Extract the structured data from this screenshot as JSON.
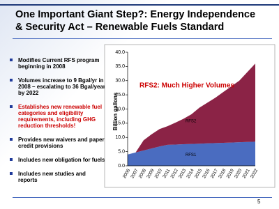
{
  "title": "One Important Giant Step?: Energy Independence & Security Act – Renewable Fuels Standard",
  "bullets": [
    {
      "text": "Modifies Current RFS program beginning in 2008",
      "color": "#000000"
    },
    {
      "text": "Volumes increase to 9 Bgal/yr in 2008 – escalating to 36 Bgal/year by 2022",
      "color": "#000000"
    },
    {
      "text": "Establishes new renewable fuel categories and eligibility requirements, including GHG reduction thresholds!",
      "color": "#cc0000"
    },
    {
      "text": "Provides new waivers and paper credit provisions",
      "color": "#000000"
    },
    {
      "text": "Includes new obligation for fuels",
      "color": "#000000"
    },
    {
      "text": "Includes new studies and reports",
      "color": "#000000"
    }
  ],
  "page_number": "5",
  "chart_data": {
    "type": "stacked_area",
    "ylabel": "Billion gallons",
    "annotation": "RFS2:  Much Higher Volumes",
    "categories": [
      "2006",
      "2007",
      "2008",
      "2009",
      "2010",
      "2011",
      "2012",
      "2013",
      "2014",
      "2015",
      "2016",
      "2017",
      "2018",
      "2019",
      "2020",
      "2021",
      "2022"
    ],
    "series": [
      {
        "name": "RFS1",
        "color": "#4a6cc0",
        "values": [
          4.0,
          4.7,
          5.4,
          6.1,
          6.8,
          7.4,
          7.5,
          7.6,
          7.7,
          7.8,
          7.9,
          8.0,
          8.1,
          8.2,
          8.3,
          8.4,
          8.5
        ]
      },
      {
        "name": "RFS2",
        "color": "#8b2346",
        "values": [
          0,
          0,
          3.6,
          5.0,
          6.15,
          6.55,
          7.7,
          8.95,
          10.45,
          12.7,
          14.35,
          16.0,
          17.9,
          19.8,
          21.7,
          24.6,
          27.5
        ]
      }
    ],
    "ylim": [
      0,
      40
    ],
    "yticks": [
      {
        "value": 0,
        "label": "0.0"
      },
      {
        "value": 5,
        "label": "5.0"
      },
      {
        "value": 10,
        "label": "10.0"
      },
      {
        "value": 15,
        "label": "15.0"
      },
      {
        "value": 20,
        "label": "20.0"
      },
      {
        "value": 25,
        "label": "25.0"
      },
      {
        "value": 30,
        "label": "30.0"
      },
      {
        "value": 35,
        "label": "35.0"
      },
      {
        "value": 40,
        "label": "40.0"
      }
    ]
  }
}
